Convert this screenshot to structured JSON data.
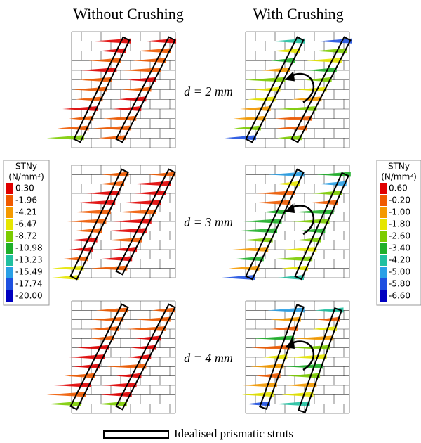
{
  "columns": [
    "Without Crushing",
    "With Crushing"
  ],
  "rows": [
    "d = 2 mm",
    "d = 3 mm",
    "d = 4 mm"
  ],
  "legends": [
    {
      "title": "STNy",
      "unit": "(N/mm²)",
      "items": [
        {
          "label": "0.30",
          "color": "#e00000"
        },
        {
          "label": "-1.96",
          "color": "#f05a00"
        },
        {
          "label": "-4.21",
          "color": "#f59a00"
        },
        {
          "label": "-6.47",
          "color": "#e6e600"
        },
        {
          "label": "-8.72",
          "color": "#7ccc00"
        },
        {
          "label": "-10.98",
          "color": "#1fb02a"
        },
        {
          "label": "-13.23",
          "color": "#20c0a0"
        },
        {
          "label": "-15.49",
          "color": "#2aa0e6"
        },
        {
          "label": "-17.74",
          "color": "#1e50e0"
        },
        {
          "label": "-20.00",
          "color": "#0000c0"
        }
      ]
    },
    {
      "title": "STNy",
      "unit": "(N/mm²)",
      "items": [
        {
          "label": "0.60",
          "color": "#e00000"
        },
        {
          "label": "-0.20",
          "color": "#f05a00"
        },
        {
          "label": "-1.00",
          "color": "#f59a00"
        },
        {
          "label": "-1.80",
          "color": "#e6e600"
        },
        {
          "label": "-2.60",
          "color": "#7ccc00"
        },
        {
          "label": "-3.40",
          "color": "#1fb02a"
        },
        {
          "label": "-4.20",
          "color": "#20c0a0"
        },
        {
          "label": "-5.00",
          "color": "#2aa0e6"
        },
        {
          "label": "-5.80",
          "color": "#1e50e0"
        },
        {
          "label": "-6.60",
          "color": "#0000c0"
        }
      ]
    }
  ],
  "footer": "Idealised prismatic struts"
}
